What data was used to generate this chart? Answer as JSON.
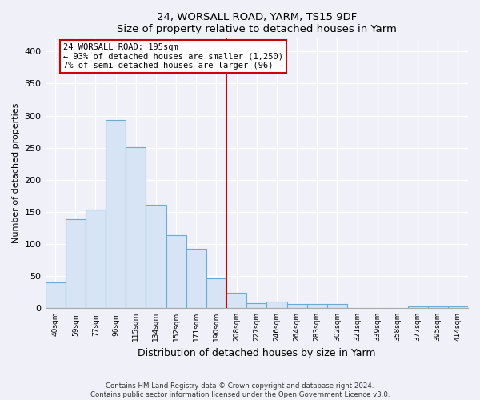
{
  "title": "24, WORSALL ROAD, YARM, TS15 9DF",
  "subtitle": "Size of property relative to detached houses in Yarm",
  "xlabel": "Distribution of detached houses by size in Yarm",
  "ylabel": "Number of detached properties",
  "bar_labels": [
    "40sqm",
    "59sqm",
    "77sqm",
    "96sqm",
    "115sqm",
    "134sqm",
    "152sqm",
    "171sqm",
    "190sqm",
    "208sqm",
    "227sqm",
    "246sqm",
    "264sqm",
    "283sqm",
    "302sqm",
    "321sqm",
    "339sqm",
    "358sqm",
    "377sqm",
    "395sqm",
    "414sqm"
  ],
  "bar_values": [
    40,
    138,
    153,
    293,
    251,
    161,
    113,
    92,
    46,
    24,
    7,
    10,
    6,
    6,
    6,
    0,
    0,
    0,
    3,
    3,
    3
  ],
  "bar_color": "#d6e4f5",
  "bar_edge_color": "#6aaad4",
  "vline_x": 8.5,
  "vline_color": "#cc0000",
  "annotation_line1": "24 WORSALL ROAD: 195sqm",
  "annotation_line2": "← 93% of detached houses are smaller (1,250)",
  "annotation_line3": "7% of semi-detached houses are larger (96) →",
  "annotation_box_edge": "#cc0000",
  "ylim": [
    0,
    420
  ],
  "yticks": [
    0,
    50,
    100,
    150,
    200,
    250,
    300,
    350,
    400
  ],
  "background_color": "#f0f0f8",
  "grid_color": "#ffffff",
  "footer_line1": "Contains HM Land Registry data © Crown copyright and database right 2024.",
  "footer_line2": "Contains public sector information licensed under the Open Government Licence v3.0."
}
